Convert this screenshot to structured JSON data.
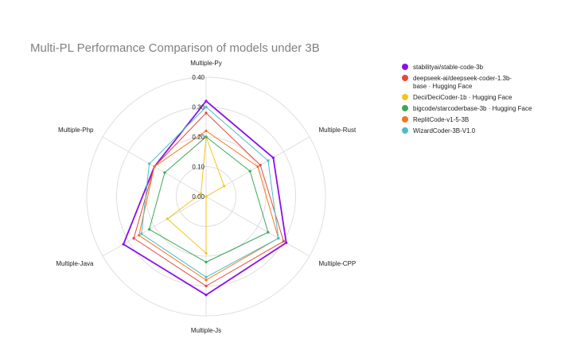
{
  "chart_data": {
    "type": "radar",
    "title": "Multi-PL Performance Comparison of models under 3B",
    "axes": [
      "Multiple-Py",
      "Multiple-Rust",
      "Multiple-CPP",
      "Multiple-Js",
      "Multiple-Java",
      "Multiple-Php"
    ],
    "radial_range": [
      0,
      0.4
    ],
    "radial_ticks": [
      "0.00",
      "0.10",
      "0.20",
      "0.30",
      "0.40"
    ],
    "grid": true,
    "legend_position": "top-right",
    "series": [
      {
        "name": "stabilityai/stable-code-3b",
        "name_lines": [
          "stabilityai/stable-code-3b"
        ],
        "color": "#8b10e8",
        "values": [
          0.32,
          0.26,
          0.31,
          0.33,
          0.32,
          0.2
        ]
      },
      {
        "name": "deepseek-ai/deepseek-coder-1.3b-base · Hugging Face",
        "name_lines": [
          "deepseek-ai/deepseek-coder-1.3b-",
          "base · Hugging Face"
        ],
        "color": "#e8483c",
        "values": [
          0.28,
          0.21,
          0.3,
          0.3,
          0.28,
          0.2
        ]
      },
      {
        "name": "Deci/DeciCoder-1b · Hugging Face",
        "name_lines": [
          "Deci/DeciCoder-1b · Hugging Face"
        ],
        "color": "#f5c518",
        "values": [
          0.2,
          0.07,
          0.0,
          0.19,
          0.15,
          0.02
        ]
      },
      {
        "name": "bigcode/starcoderbase-3b · Hugging Face",
        "name_lines": [
          "bigcode/starcoderbase-3b · Hugging Face"
        ],
        "color": "#3aa85a",
        "values": [
          0.2,
          0.17,
          0.24,
          0.22,
          0.22,
          0.16
        ]
      },
      {
        "name": "ReplitCode-v1-5-3B",
        "name_lines": [
          "ReplitCode-v1-5-3B"
        ],
        "color": "#f2761e",
        "values": [
          0.22,
          0.2,
          0.28,
          0.28,
          0.26,
          0.2
        ]
      },
      {
        "name": "WizardCoder-3B-V1.0",
        "name_lines": [
          "WizardCoder-3B-V1.0"
        ],
        "color": "#4bbfc5",
        "values": [
          0.3,
          0.24,
          0.28,
          0.27,
          0.25,
          0.22
        ]
      }
    ]
  }
}
